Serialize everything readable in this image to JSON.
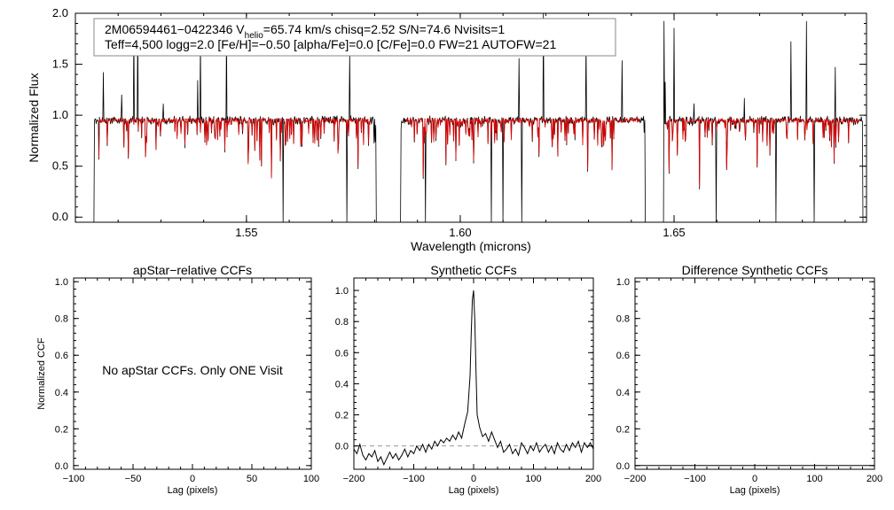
{
  "chart_data": [
    {
      "type": "line",
      "panel": "spectrum",
      "title": "",
      "xlabel": "Wavelength (microns)",
      "ylabel": "Normalized Flux",
      "xlim": [
        1.51,
        1.695
      ],
      "ylim": [
        -0.05,
        2.0
      ],
      "xticks": [
        1.55,
        1.6,
        1.65
      ],
      "xtick_labels": [
        "1.55",
        "1.60",
        "1.65"
      ],
      "yticks": [
        0.0,
        0.5,
        1.0,
        1.5,
        2.0
      ],
      "ytick_labels": [
        "0.0",
        "0.5",
        "1.0",
        "1.5",
        "2.0"
      ],
      "chips": [
        [
          1.5142,
          1.5805
        ],
        [
          1.5859,
          1.6434
        ],
        [
          1.6474,
          1.6943
        ]
      ],
      "annotation": {
        "line1_prefix": "2M06594461−0422346  V",
        "line1_sub": "helio",
        "line1_rest": "=65.74 km/s  chisq=2.52  S/N=74.6  Nvisits=1",
        "line2": "Teff=4,500 logg=2.0 [Fe/H]=−0.50 [alpha/Fe]=0.0 [C/Fe]=0.0 FW=21 AUTOFW=21"
      },
      "series": [
        {
          "name": "observed",
          "color": "#000000",
          "continuum": 0.95
        },
        {
          "name": "model",
          "color": "#dd0000",
          "continuum": 0.95
        }
      ]
    },
    {
      "type": "line",
      "panel": "apstar-ccf",
      "title": "apStar−relative CCFs",
      "xlabel": "Lag (pixels)",
      "ylabel": "Normalized CCF",
      "xlim": [
        -100,
        100
      ],
      "ylim": [
        -0.02,
        1.02
      ],
      "xticks": [
        -100,
        -50,
        0,
        50,
        100
      ],
      "xtick_labels": [
        "−100",
        "−50",
        "0",
        "50",
        "100"
      ],
      "yticks": [
        0.0,
        0.2,
        0.4,
        0.6,
        0.8,
        1.0
      ],
      "ytick_labels": [
        "0.0",
        "0.2",
        "0.4",
        "0.6",
        "0.8",
        "1.0"
      ],
      "message": "No apStar CCFs.  Only ONE Visit",
      "series": []
    },
    {
      "type": "line",
      "panel": "synthetic-ccf",
      "title": "Synthetic CCFs",
      "xlabel": "Lag (pixels)",
      "ylabel": "",
      "xlim": [
        -200,
        200
      ],
      "ylim": [
        -0.15,
        1.08
      ],
      "xticks": [
        -200,
        -100,
        0,
        100,
        200
      ],
      "xtick_labels": [
        "−200",
        "−100",
        "0",
        "100",
        "200"
      ],
      "yticks": [
        0.0,
        0.2,
        0.4,
        0.6,
        0.8,
        1.0
      ],
      "ytick_labels": [
        "0.0",
        "0.2",
        "0.4",
        "0.6",
        "0.8",
        "1.0"
      ],
      "reference_line": 0.0,
      "series": [
        {
          "name": "ccf",
          "color": "#000000",
          "x": [
            -200,
            -195,
            -190,
            -185,
            -180,
            -175,
            -170,
            -165,
            -160,
            -155,
            -150,
            -145,
            -140,
            -135,
            -130,
            -125,
            -120,
            -115,
            -110,
            -105,
            -100,
            -95,
            -90,
            -85,
            -80,
            -75,
            -70,
            -65,
            -60,
            -55,
            -50,
            -45,
            -40,
            -35,
            -30,
            -25,
            -20,
            -15,
            -10,
            -6,
            -4,
            -2,
            0,
            2,
            4,
            6,
            10,
            15,
            20,
            25,
            30,
            35,
            40,
            45,
            50,
            55,
            60,
            65,
            70,
            75,
            80,
            85,
            90,
            95,
            100,
            105,
            110,
            115,
            120,
            125,
            130,
            135,
            140,
            145,
            150,
            155,
            160,
            165,
            170,
            175,
            180,
            185,
            190,
            195,
            200
          ],
          "y": [
            -0.02,
            -0.05,
            0.01,
            -0.06,
            -0.09,
            -0.05,
            -0.07,
            -0.03,
            -0.1,
            -0.07,
            -0.12,
            -0.08,
            -0.04,
            -0.08,
            -0.05,
            -0.09,
            -0.06,
            -0.02,
            -0.07,
            -0.03,
            -0.05,
            0.0,
            -0.03,
            0.01,
            -0.04,
            0.01,
            -0.02,
            0.03,
            0.0,
            0.04,
            0.02,
            0.05,
            0.03,
            0.07,
            0.04,
            0.09,
            0.05,
            0.14,
            0.22,
            0.45,
            0.72,
            0.94,
            1.0,
            0.8,
            0.48,
            0.2,
            0.12,
            0.06,
            0.08,
            0.03,
            0.09,
            0.04,
            -0.01,
            0.03,
            -0.04,
            -0.02,
            0.01,
            -0.05,
            -0.02,
            -0.06,
            0.02,
            -0.01,
            -0.05,
            0.0,
            -0.03,
            0.02,
            -0.04,
            -0.01,
            0.01,
            -0.04,
            0.0,
            -0.05,
            0.02,
            -0.02,
            -0.04,
            0.01,
            -0.03,
            0.02,
            -0.01,
            0.03,
            -0.04,
            0.02,
            -0.01,
            0.02,
            -0.02
          ]
        }
      ]
    },
    {
      "type": "line",
      "panel": "difference-ccf",
      "title": "Difference Synthetic CCFs",
      "xlabel": "Lag (pixels)",
      "ylabel": "",
      "xlim": [
        -200,
        200
      ],
      "ylim": [
        -0.02,
        1.02
      ],
      "xticks": [
        -200,
        -100,
        0,
        100,
        200
      ],
      "xtick_labels": [
        "−200",
        "−100",
        "0",
        "100",
        "200"
      ],
      "yticks": [
        0.0,
        0.2,
        0.4,
        0.6,
        0.8,
        1.0
      ],
      "ytick_labels": [
        "0.0",
        "0.2",
        "0.4",
        "0.6",
        "0.8",
        "1.0"
      ],
      "series": [
        {
          "name": "difference",
          "color": "#000000",
          "x": [
            -200,
            200
          ],
          "y": [
            0.0,
            0.0
          ]
        }
      ]
    }
  ]
}
